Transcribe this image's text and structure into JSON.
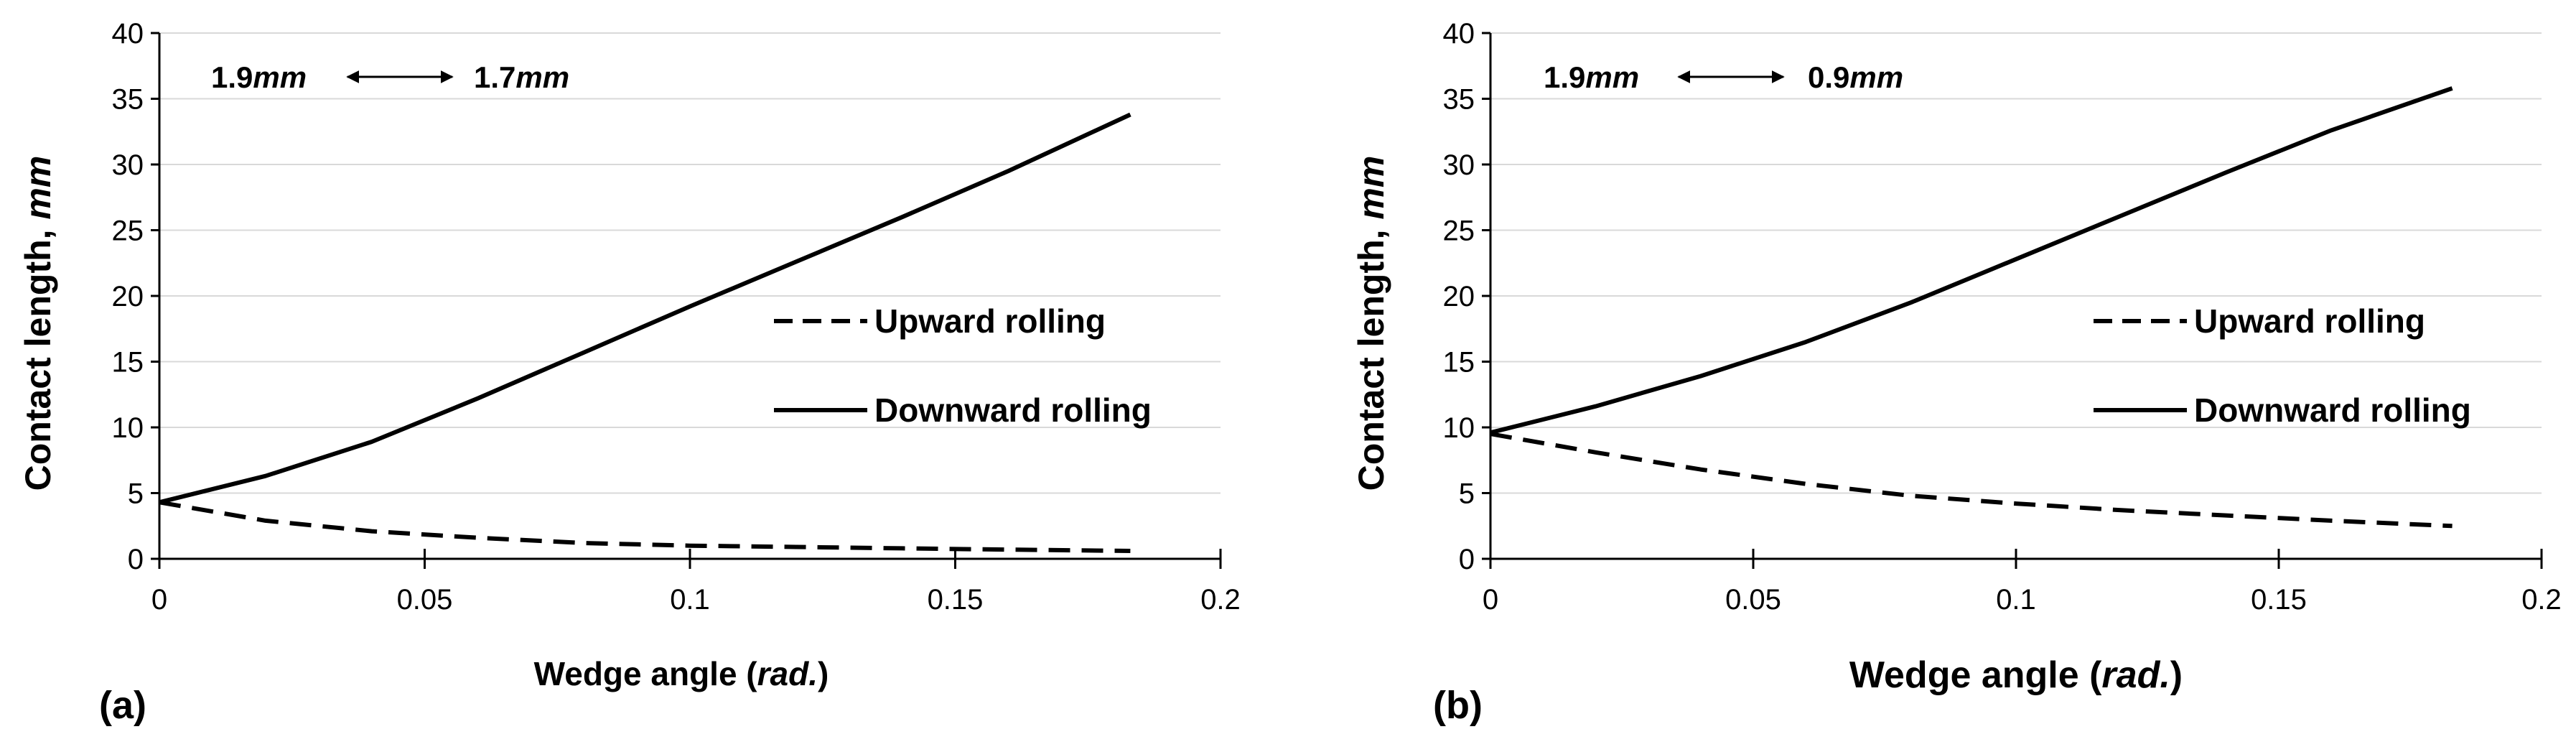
{
  "chart_data": [
    {
      "type": "line",
      "panel_label": "(a)",
      "xlabel_text": "Wedge angle (",
      "xlabel_unit": "rad.",
      "xlabel_close": ")",
      "ylabel_text": "Contact length, ",
      "ylabel_unit": "mm",
      "xlim": [
        0,
        0.2
      ],
      "ylim": [
        0,
        40
      ],
      "xticks": [
        "0",
        "0.05",
        "0.1",
        "0.15",
        "0.2"
      ],
      "yticks": [
        "0",
        "5",
        "10",
        "15",
        "20",
        "25",
        "30",
        "35",
        "40"
      ],
      "xtick_values": [
        0,
        0.05,
        0.1,
        0.15,
        0.2
      ],
      "ytick_values": [
        0,
        5,
        10,
        15,
        20,
        25,
        30,
        35,
        40
      ],
      "grid": true,
      "annotation": {
        "left": "1.9",
        "left_unit": "mm",
        "right": "1.7",
        "right_unit": "mm"
      },
      "legend_position": "center-right",
      "series": [
        {
          "name": "Upward rolling",
          "style": "dashed",
          "x": [
            0,
            0.02,
            0.04,
            0.06,
            0.08,
            0.1,
            0.12,
            0.14,
            0.16,
            0.183
          ],
          "y": [
            4.3,
            2.9,
            2.1,
            1.6,
            1.2,
            1.0,
            0.9,
            0.8,
            0.7,
            0.6
          ]
        },
        {
          "name": "Downward rolling",
          "style": "solid",
          "x": [
            0,
            0.02,
            0.04,
            0.06,
            0.08,
            0.1,
            0.12,
            0.14,
            0.16,
            0.183
          ],
          "y": [
            4.3,
            6.3,
            8.9,
            12.2,
            15.7,
            19.2,
            22.6,
            26.0,
            29.5,
            33.8
          ]
        }
      ]
    },
    {
      "type": "line",
      "panel_label": "(b)",
      "xlabel_text": "Wedge angle (",
      "xlabel_unit": "rad.",
      "xlabel_close": ")",
      "ylabel_text": "Contact length, ",
      "ylabel_unit": "mm",
      "xlim": [
        0,
        0.2
      ],
      "ylim": [
        0,
        40
      ],
      "xticks": [
        "0",
        "0.05",
        "0.1",
        "0.15",
        "0.2"
      ],
      "yticks": [
        "0",
        "5",
        "10",
        "15",
        "20",
        "25",
        "30",
        "35",
        "40"
      ],
      "xtick_values": [
        0,
        0.05,
        0.1,
        0.15,
        0.2
      ],
      "ytick_values": [
        0,
        5,
        10,
        15,
        20,
        25,
        30,
        35,
        40
      ],
      "grid": true,
      "annotation": {
        "left": "1.9",
        "left_unit": "mm",
        "right": "0.9",
        "right_unit": "mm"
      },
      "legend_position": "center-right",
      "series": [
        {
          "name": "Upward rolling",
          "style": "dashed",
          "x": [
            0,
            0.02,
            0.04,
            0.06,
            0.08,
            0.1,
            0.12,
            0.14,
            0.16,
            0.183
          ],
          "y": [
            9.5,
            8.1,
            6.8,
            5.7,
            4.8,
            4.2,
            3.7,
            3.3,
            2.9,
            2.5
          ]
        },
        {
          "name": "Downward rolling",
          "style": "solid",
          "x": [
            0,
            0.02,
            0.04,
            0.06,
            0.08,
            0.1,
            0.12,
            0.14,
            0.16,
            0.183
          ],
          "y": [
            9.6,
            11.6,
            13.9,
            16.5,
            19.5,
            22.8,
            26.1,
            29.4,
            32.6,
            35.8
          ]
        }
      ]
    }
  ]
}
